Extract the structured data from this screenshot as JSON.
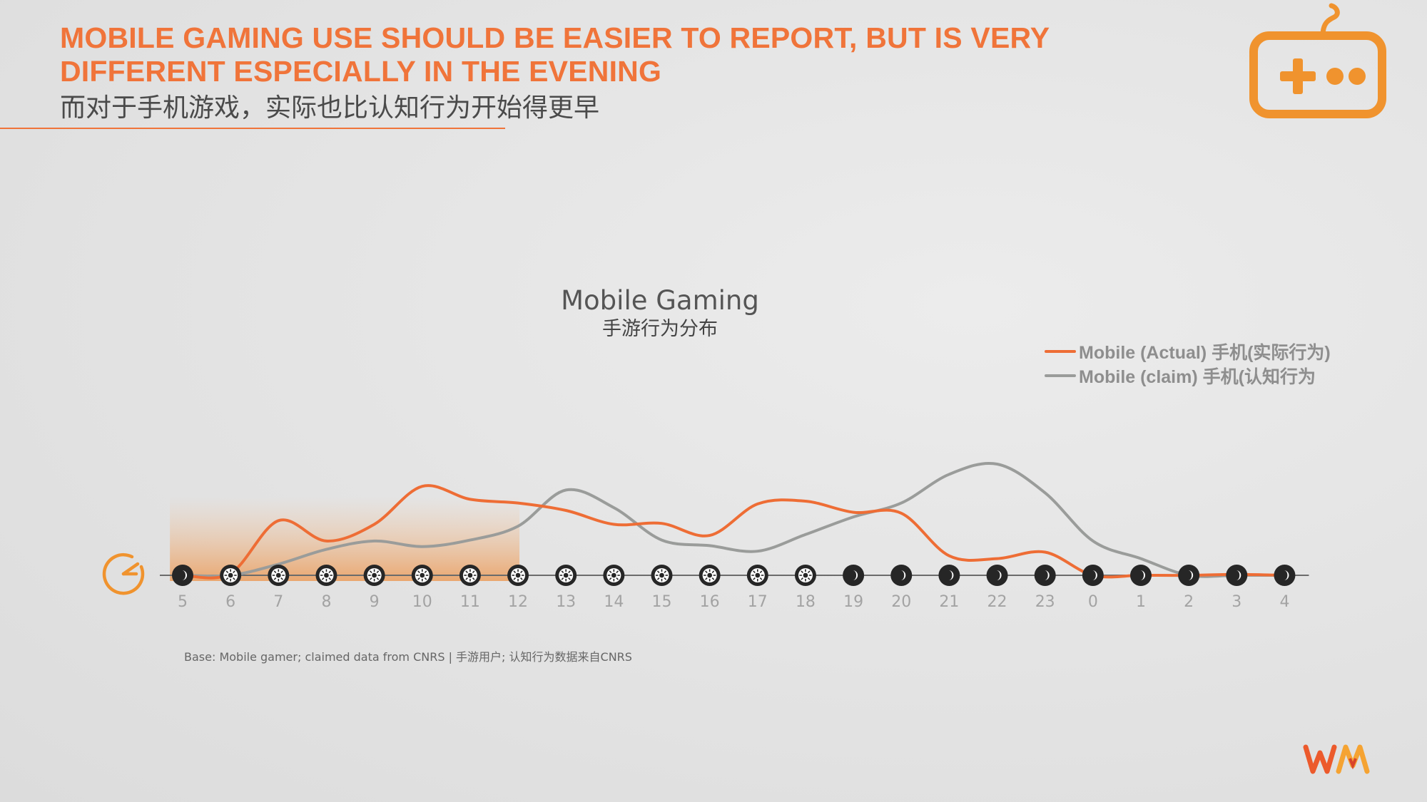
{
  "header": {
    "title_line1": "MOBILE GAMING USE SHOULD BE EASIER TO REPORT, BUT IS VERY",
    "title_line2": "DIFFERENT ESPECIALLY IN THE EVENING",
    "subtitle": "而对于手机游戏，实际也比认知行为开始得更早",
    "accent_color": "#f0743a",
    "icon": "gamepad-icon"
  },
  "chart_data": {
    "type": "line",
    "title": "Mobile Gaming",
    "subtitle": "手游行为分布",
    "xlabel": "",
    "ylabel": "",
    "categories": [
      "5",
      "6",
      "7",
      "8",
      "9",
      "10",
      "11",
      "12",
      "13",
      "14",
      "15",
      "16",
      "17",
      "18",
      "19",
      "20",
      "21",
      "22",
      "23",
      "0",
      "1",
      "2",
      "3",
      "4"
    ],
    "period_markers": [
      "moon",
      "sun",
      "sun",
      "sun",
      "sun",
      "sun",
      "sun",
      "sun",
      "sun",
      "sun",
      "sun",
      "sun",
      "sun",
      "sun",
      "moon",
      "moon",
      "moon",
      "moon",
      "moon",
      "moon",
      "moon",
      "moon",
      "moon",
      "moon"
    ],
    "highlight_range": [
      "6",
      "12"
    ],
    "ylim": [
      0,
      100
    ],
    "grid": false,
    "legend_position": "top-right",
    "series": [
      {
        "name": "Mobile (Actual) 手机(实际行为)",
        "color": "#ee6d35",
        "values": [
          0,
          2,
          59,
          37,
          55,
          96,
          82,
          78,
          70,
          55,
          56,
          43,
          77,
          80,
          68,
          67,
          21,
          18,
          25,
          0,
          0,
          0,
          1,
          0
        ]
      },
      {
        "name": "Mobile (claim) 手机(认知行为",
        "color": "#9a9c9a",
        "values": [
          0,
          0,
          12,
          28,
          37,
          31,
          38,
          53,
          92,
          73,
          38,
          32,
          26,
          44,
          63,
          78,
          109,
          120,
          89,
          37,
          18,
          0,
          0,
          0
        ]
      }
    ],
    "icon": "clock-icon"
  },
  "footnote": "Base: Mobile gamer; claimed data from CNRS | 手游用户; 认知行为数据来自CNRS",
  "logo": "wm-logo"
}
